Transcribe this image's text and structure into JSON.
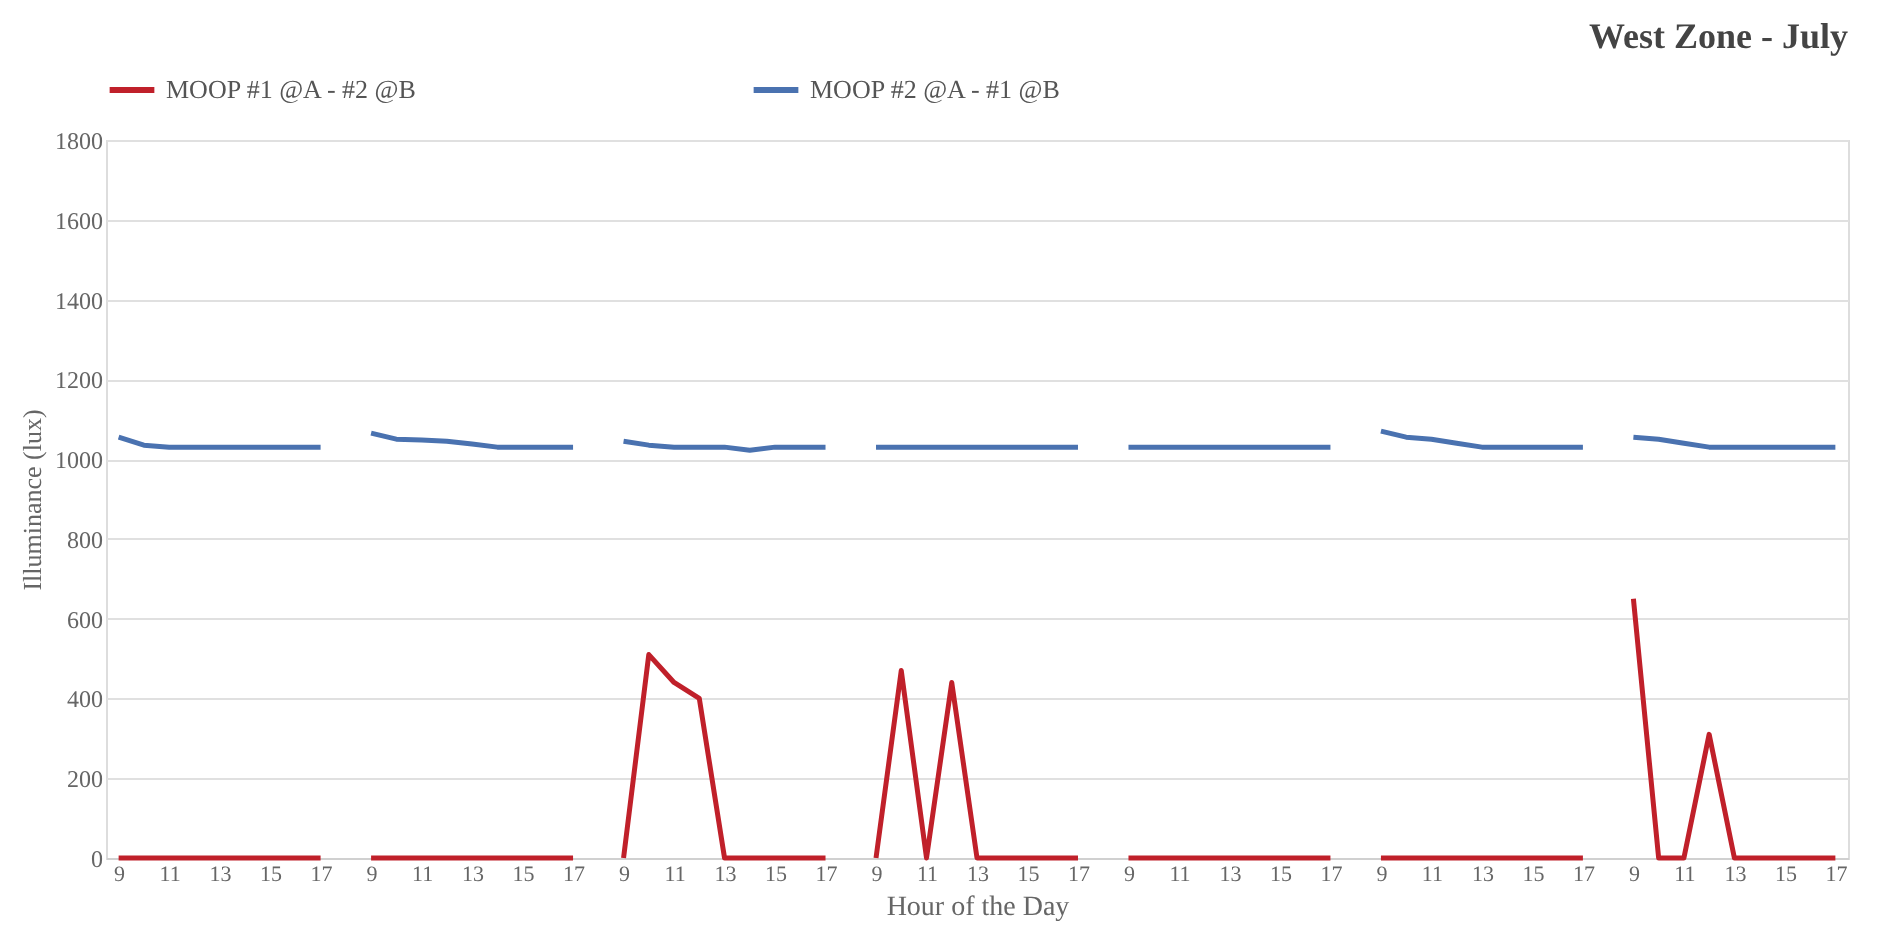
{
  "chart_data": {
    "type": "line",
    "title": "West Zone - July",
    "xlabel": "Hour of the Day",
    "ylabel": "Illuminance (lux)",
    "categories": [
      "9",
      null,
      "11",
      null,
      "13",
      null,
      "15",
      null,
      "17",
      null,
      "9",
      null,
      "11",
      null,
      "13",
      null,
      "15",
      null,
      "17",
      null,
      "9",
      null,
      "11",
      null,
      "13",
      null,
      "15",
      null,
      "17",
      null,
      "9",
      null,
      "11",
      null,
      "13",
      null,
      "15",
      null,
      "17",
      null,
      "9",
      null,
      "11",
      null,
      "13",
      null,
      "15",
      null,
      "17",
      null,
      "9",
      null,
      "11",
      null,
      "13",
      null,
      "15",
      null,
      "17",
      null,
      "9",
      null,
      "11",
      null,
      "13",
      null,
      "15",
      null,
      "17"
    ],
    "series": [
      {
        "name": "MOOP #1 @A - #2 @B",
        "color": "#c0202a",
        "values": [
          0,
          0,
          0,
          0,
          0,
          0,
          0,
          0,
          0,
          null,
          0,
          0,
          0,
          0,
          0,
          0,
          0,
          0,
          0,
          null,
          0,
          510,
          440,
          400,
          0,
          0,
          0,
          0,
          0,
          null,
          0,
          470,
          0,
          440,
          0,
          0,
          0,
          0,
          0,
          null,
          0,
          0,
          0,
          0,
          0,
          0,
          0,
          0,
          0,
          null,
          0,
          0,
          0,
          0,
          0,
          0,
          0,
          0,
          0,
          null,
          650,
          0,
          0,
          310,
          0,
          0,
          0,
          0,
          0
        ]
      },
      {
        "name": "MOOP #2 @A - #1 @B",
        "color": "#4a72b0",
        "values": [
          1055,
          1035,
          1030,
          1030,
          1030,
          1030,
          1030,
          1030,
          1030,
          null,
          1065,
          1050,
          1048,
          1045,
          1038,
          1030,
          1030,
          1030,
          1030,
          null,
          1045,
          1035,
          1030,
          1030,
          1030,
          1022,
          1030,
          1030,
          1030,
          null,
          1030,
          1030,
          1030,
          1030,
          1030,
          1030,
          1030,
          1030,
          1030,
          null,
          1030,
          1030,
          1030,
          1030,
          1030,
          1030,
          1030,
          1030,
          1030,
          null,
          1070,
          1055,
          1050,
          1040,
          1030,
          1030,
          1030,
          1030,
          1030,
          null,
          1055,
          1050,
          1040,
          1030,
          1030,
          1030,
          1030,
          1030,
          1030
        ]
      }
    ],
    "ylim": [
      0,
      1800
    ],
    "yticks": [
      0,
      200,
      400,
      600,
      800,
      1000,
      1200,
      1400,
      1600,
      1800
    ],
    "grid": "y",
    "legend": "top",
    "line_style": "solid",
    "marker": "none"
  }
}
